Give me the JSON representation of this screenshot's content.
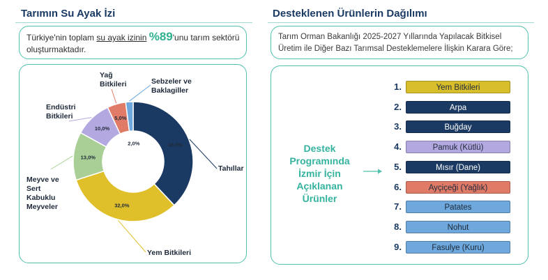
{
  "left": {
    "title": "Tarımın Su Ayak İzi",
    "info": {
      "part1": "Türkiye'nin toplam ",
      "highlight": "su ayak izinin",
      "percent": "%89",
      "part2": "'unu tarım sektörü",
      "line2": "oluşturmaktadır."
    }
  },
  "chart_data": {
    "type": "pie",
    "variant": "donut",
    "categories": [
      "Tahıllar",
      "Yem Bitkileri",
      "Meyve ve Sert Kabuklu Meyveler",
      "Endüstri Bitkileri",
      "Yağ Bitkileri",
      "Sebzeler ve Baklagiller"
    ],
    "values": [
      38.0,
      32.0,
      13.0,
      10.0,
      5.0,
      2.0
    ],
    "value_labels": [
      "38,0%",
      "32,0%",
      "13,0%",
      "10,0%",
      "5,0%",
      "2,0%"
    ],
    "colors": [
      "#1b3a63",
      "#e0c02a",
      "#a9cf96",
      "#b3a8e0",
      "#e07b68",
      "#6ea8dc"
    ],
    "label_lines": [
      [
        "Tahıllar"
      ],
      [
        "Yem Bitkileri"
      ],
      [
        "Meyve ve",
        "Sert",
        "Kabuklu",
        "Meyveler"
      ],
      [
        "Endüstri",
        "Bitkileri"
      ],
      [
        "Yağ",
        "Bitkileri"
      ],
      [
        "Sebzeler ve",
        "Baklagiller"
      ]
    ]
  },
  "right": {
    "title": "Desteklenen Ürünlerin Dağılımı",
    "info_line1": "Tarım Orman Bakanlığı 2025-2027 Yıllarında Yapılacak Bitkisel",
    "info_line2": "Üretim ile Diğer Bazı Tarımsal Desteklemelere İlişkin Karara Göre;",
    "support_title_lines": [
      "Destek",
      "Programında",
      "İzmir İçin",
      "Açıklanan",
      "Ürünler"
    ],
    "products": [
      {
        "num": "1.",
        "name": "Yem Bitkileri",
        "color": "#d9be2c",
        "text_color": "#1e2a3a"
      },
      {
        "num": "2.",
        "name": "Arpa",
        "color": "#1b3a63",
        "text_color": "#ffffff"
      },
      {
        "num": "3.",
        "name": "Buğday",
        "color": "#1b3a63",
        "text_color": "#ffffff"
      },
      {
        "num": "4.",
        "name": "Pamuk (Kütlü)",
        "color": "#b3a8e0",
        "text_color": "#1e2a3a"
      },
      {
        "num": "5.",
        "name": "Mısır (Dane)",
        "color": "#1b3a63",
        "text_color": "#ffffff"
      },
      {
        "num": "6.",
        "name": "Ayçiçeği (Yağlık)",
        "color": "#e07b68",
        "text_color": "#1e2a3a"
      },
      {
        "num": "7.",
        "name": "Patates",
        "color": "#6ea8dc",
        "text_color": "#1e2a3a"
      },
      {
        "num": "8.",
        "name": "Nohut",
        "color": "#6ea8dc",
        "text_color": "#1e2a3a"
      },
      {
        "num": "9.",
        "name": "Fasulye (Kuru)",
        "color": "#6ea8dc",
        "text_color": "#1e2a3a"
      }
    ]
  }
}
